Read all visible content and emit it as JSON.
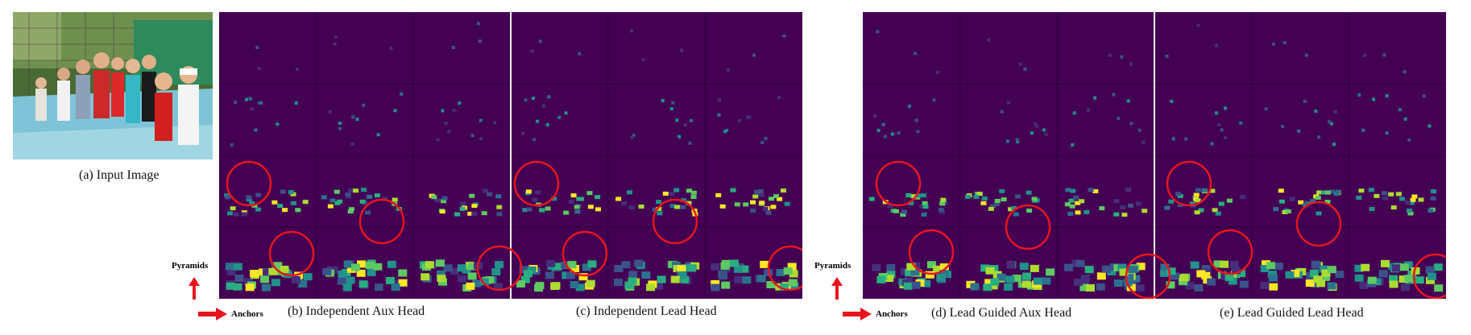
{
  "captions": {
    "a": "(a) Input Image",
    "b": "(b) Independent Aux Head",
    "c": "(c) Independent Lead Head",
    "d": "(d) Lead Guided Aux Head",
    "e": "(e) Lead Guided Lead Head"
  },
  "axis": {
    "pyramids": "Pyramids",
    "anchors": "Anchors"
  },
  "colors": {
    "background": "#440154",
    "circle": "#e8141c",
    "arrow": "#e8141c",
    "grid_line": "#2a0035",
    "divider": "#ffffff"
  },
  "viridis": [
    "#440154",
    "#472d7b",
    "#3b528b",
    "#2c728e",
    "#21918c",
    "#28ae80",
    "#5ec962",
    "#addc30",
    "#fde725"
  ]
}
